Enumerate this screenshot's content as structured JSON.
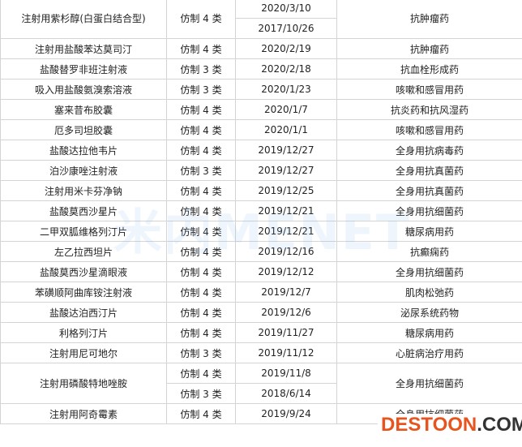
{
  "table": {
    "rows": [
      [
        "注射用紫杉醇(白蛋白结合型)",
        "仿制 4 类",
        "2020/3/10",
        "抗肿瘤药"
      ],
      [
        "2017/10/26"
      ],
      [
        "注射用盐酸苯达莫司汀",
        "仿制 4 类",
        "2020/2/19",
        "抗肿瘤药"
      ],
      [
        "盐酸替罗非班注射液",
        "仿制 3 类",
        "2020/2/18",
        "抗血栓形成药"
      ],
      [
        "吸入用盐酸氨溴索溶液",
        "仿制 3 类",
        "2020/1/23",
        "咳嗽和感冒用药"
      ],
      [
        "塞来昔布胶囊",
        "仿制 4 类",
        "2020/1/7",
        "抗炎药和抗风湿药"
      ],
      [
        "厄多司坦胶囊",
        "仿制 4 类",
        "2020/1/1",
        "咳嗽和感冒用药"
      ],
      [
        "盐酸达拉他韦片",
        "仿制 4 类",
        "2019/12/27",
        "全身用抗病毒药"
      ],
      [
        "泊沙康唑注射液",
        "仿制 3 类",
        "2019/12/27",
        "全身用抗真菌药"
      ],
      [
        "注射用米卡芬净钠",
        "仿制 4 类",
        "2019/12/25",
        "全身用抗真菌药"
      ],
      [
        "盐酸莫西沙星片",
        "仿制 4 类",
        "2019/12/21",
        "全身用抗细菌药"
      ],
      [
        "二甲双胍维格列汀片",
        "仿制 4 类",
        "2019/12/21",
        "糖尿病用药"
      ],
      [
        "左乙拉西坦片",
        "仿制 4 类",
        "2019/12/16",
        "抗癫痫药"
      ],
      [
        "盐酸莫西沙星滴眼液",
        "仿制 4 类",
        "2019/12/12",
        "全身用抗细菌药"
      ],
      [
        "苯磺顺阿曲库铵注射液",
        "仿制 4 类",
        "2019/12/7",
        "肌肉松弛药"
      ],
      [
        "盐酸达泊西汀片",
        "仿制 4 类",
        "2019/12/6",
        "泌尿系统药物"
      ],
      [
        "利格列汀片",
        "仿制 4 类",
        "2019/11/27",
        "糖尿病用药"
      ],
      [
        "注射用尼可地尔",
        "仿制 3 类",
        "2019/11/12",
        "心脏病治疗用药"
      ],
      [
        "注射用磷酸特地唑胺",
        "仿制 4 类",
        "2019/11/8",
        "全身用抗细菌药"
      ],
      [
        "仿制 3 类",
        "2018/6/14"
      ],
      [
        "注射用阿奇霉素",
        "仿制 4 类",
        "2019/9/24",
        "全身用抗细菌药"
      ]
    ]
  },
  "watermark": {
    "logo": "米内MENET",
    "brand": "DESTOON",
    "suffix": ".COM"
  }
}
